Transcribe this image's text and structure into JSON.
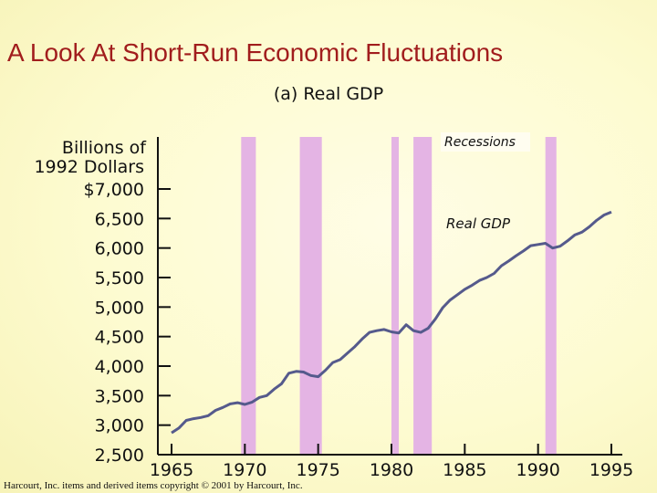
{
  "page": {
    "title": "A Look At Short-Run Economic Fluctuations",
    "footer": "Harcourt, Inc. items and derived items copyright © 2001 by Harcourt, Inc."
  },
  "colors": {
    "recession_band": "#e4b4e4",
    "line": "#555a8c",
    "axis": "#111111",
    "title": "#a11d1d"
  },
  "chart_data": {
    "type": "line",
    "title": "(a) Real GDP",
    "ylabel": "Billions of 1992 Dollars",
    "ylim": [
      2500,
      7000
    ],
    "xlim": [
      1965,
      1995
    ],
    "yticks": [
      7000,
      6500,
      6000,
      5500,
      5000,
      4500,
      4000,
      3500,
      3000,
      2500
    ],
    "ytick_labels": [
      "$7,000",
      "6,500",
      "6,000",
      "5,500",
      "5,000",
      "4,500",
      "4,000",
      "3,500",
      "3,000",
      "2,500"
    ],
    "xticks": [
      1965,
      1970,
      1975,
      1980,
      1985,
      1990,
      1995
    ],
    "xtick_labels": [
      "1965",
      "1970",
      "1975",
      "1980",
      "1985",
      "1990",
      "1995"
    ],
    "recessions_label": "Recessions",
    "recessions": [
      [
        1969.75,
        1970.75
      ],
      [
        1973.75,
        1975.25
      ],
      [
        1980.0,
        1980.5
      ],
      [
        1981.5,
        1982.75
      ],
      [
        1990.5,
        1991.25
      ]
    ],
    "series": [
      {
        "name": "Real GDP",
        "x": [
          1965.0,
          1965.5,
          1966.0,
          1966.5,
          1967.0,
          1967.5,
          1968.0,
          1968.5,
          1969.0,
          1969.5,
          1970.0,
          1970.5,
          1971.0,
          1971.5,
          1972.0,
          1972.5,
          1973.0,
          1973.5,
          1974.0,
          1974.5,
          1975.0,
          1975.5,
          1976.0,
          1976.5,
          1977.0,
          1977.5,
          1978.0,
          1978.5,
          1979.0,
          1979.5,
          1980.0,
          1980.5,
          1981.0,
          1981.5,
          1982.0,
          1982.5,
          1983.0,
          1983.5,
          1984.0,
          1984.5,
          1985.0,
          1985.5,
          1986.0,
          1986.5,
          1987.0,
          1987.5,
          1988.0,
          1988.5,
          1989.0,
          1989.5,
          1990.0,
          1990.5,
          1991.0,
          1991.5,
          1992.0,
          1992.5,
          1993.0,
          1993.5,
          1994.0,
          1994.5,
          1995.0
        ],
        "values": [
          2870,
          2950,
          3080,
          3110,
          3130,
          3160,
          3250,
          3300,
          3360,
          3380,
          3350,
          3390,
          3470,
          3500,
          3610,
          3700,
          3880,
          3910,
          3900,
          3840,
          3820,
          3930,
          4060,
          4110,
          4220,
          4330,
          4460,
          4570,
          4600,
          4620,
          4580,
          4560,
          4700,
          4600,
          4570,
          4640,
          4800,
          4990,
          5120,
          5210,
          5300,
          5370,
          5450,
          5500,
          5570,
          5700,
          5780,
          5870,
          5950,
          6040,
          6060,
          6080,
          6000,
          6030,
          6120,
          6220,
          6270,
          6360,
          6470,
          6560,
          6610
        ]
      }
    ]
  }
}
